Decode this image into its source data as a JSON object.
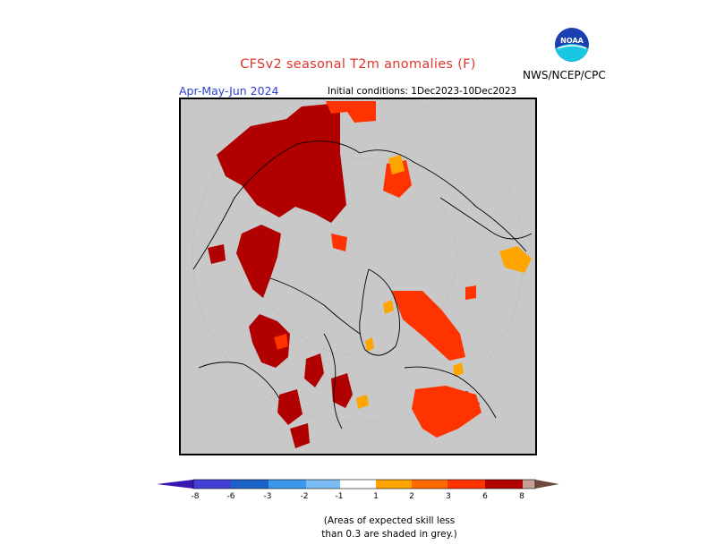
{
  "header": {
    "title": "CFSv2 seasonal T2m anomalies (F)",
    "period": "Apr-May-Jun 2024",
    "initial_conditions": "Initial conditions: 1Dec2023-10Dec2023",
    "agency": "NWS/NCEP/CPC",
    "logo_text": "NOAA"
  },
  "colors": {
    "grey_no_skill": "#c8c8c8",
    "bin_minus8": "#3a16b4",
    "bin_minus6": "#4440d6",
    "bin_minus3": "#1c62c8",
    "bin_minus2": "#3c98ec",
    "bin_minus1": "#7cbcf4",
    "bin_neutral": "#ffffff",
    "bin_1": "#ffa500",
    "bin_2": "#ff6a00",
    "bin_3": "#ff3300",
    "bin_6": "#b00000",
    "bin_8": "#c4a090",
    "bin_gt8": "#6e4a3e"
  },
  "legend": {
    "tick_labels": [
      "-8",
      "-6",
      "-3",
      "-2",
      "-1",
      "1",
      "2",
      "3",
      "6",
      "8"
    ]
  },
  "footnote": {
    "line1": "(Areas of expected skill less",
    "line2": "than 0.3 are shaded in grey.)"
  }
}
